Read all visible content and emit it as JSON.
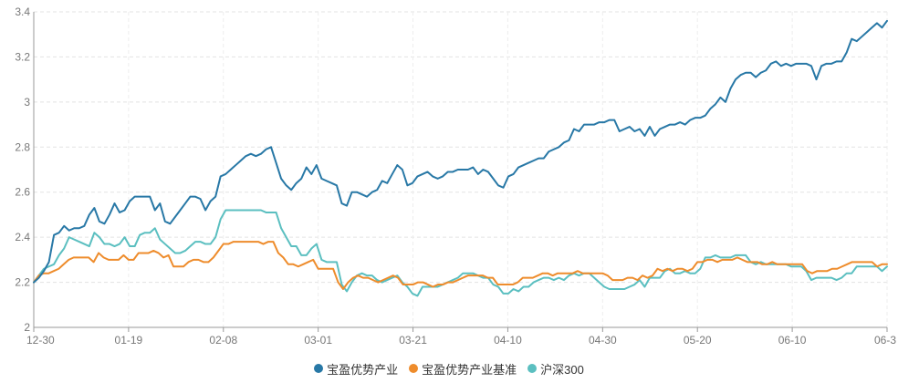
{
  "chart_data": {
    "type": "line",
    "title": "",
    "xlabel": "",
    "ylabel": "",
    "x_ticks": [
      "12-30",
      "01-19",
      "02-08",
      "03-01",
      "03-21",
      "04-10",
      "04-30",
      "05-20",
      "06-10",
      "06-3"
    ],
    "y_ticks": [
      "2",
      "2.2",
      "2.4",
      "2.6",
      "2.8",
      "3",
      "3.2",
      "3.4"
    ],
    "ylim": [
      2.0,
      3.4
    ],
    "grid": "horizontal dashed",
    "legend_position": "bottom",
    "series": [
      {
        "name": "宝盈优势产业",
        "color": "#2878a6",
        "values": [
          2.2,
          2.22,
          2.25,
          2.29,
          2.41,
          2.42,
          2.45,
          2.43,
          2.44,
          2.44,
          2.45,
          2.5,
          2.53,
          2.47,
          2.46,
          2.5,
          2.55,
          2.51,
          2.52,
          2.56,
          2.58,
          2.58,
          2.58,
          2.58,
          2.52,
          2.55,
          2.47,
          2.46,
          2.49,
          2.52,
          2.55,
          2.58,
          2.58,
          2.57,
          2.52,
          2.56,
          2.58,
          2.67,
          2.68,
          2.7,
          2.72,
          2.74,
          2.76,
          2.77,
          2.76,
          2.77,
          2.79,
          2.8,
          2.73,
          2.66,
          2.63,
          2.61,
          2.64,
          2.66,
          2.71,
          2.68,
          2.72,
          2.66,
          2.65,
          2.64,
          2.63,
          2.55,
          2.54,
          2.6,
          2.6,
          2.59,
          2.58,
          2.6,
          2.61,
          2.65,
          2.64,
          2.68,
          2.72,
          2.7,
          2.63,
          2.64,
          2.67,
          2.68,
          2.69,
          2.67,
          2.66,
          2.67,
          2.69,
          2.69,
          2.7,
          2.7,
          2.7,
          2.71,
          2.68,
          2.7,
          2.69,
          2.66,
          2.63,
          2.62,
          2.67,
          2.68,
          2.71,
          2.72,
          2.73,
          2.74,
          2.75,
          2.75,
          2.78,
          2.79,
          2.8,
          2.82,
          2.83,
          2.88,
          2.87,
          2.9,
          2.9,
          2.9,
          2.91,
          2.91,
          2.92,
          2.92,
          2.87,
          2.88,
          2.89,
          2.87,
          2.88,
          2.85,
          2.89,
          2.85,
          2.88,
          2.89,
          2.9,
          2.9,
          2.91,
          2.9,
          2.92,
          2.93,
          2.93,
          2.94,
          2.97,
          2.99,
          3.02,
          3.0,
          3.06,
          3.1,
          3.12,
          3.13,
          3.13,
          3.11,
          3.13,
          3.14,
          3.17,
          3.18,
          3.16,
          3.17,
          3.16,
          3.17,
          3.17,
          3.17,
          3.16,
          3.1,
          3.16,
          3.17,
          3.17,
          3.18,
          3.18,
          3.22,
          3.28,
          3.27,
          3.29,
          3.31,
          3.33,
          3.35,
          3.33,
          3.36
        ]
      },
      {
        "name": "宝盈优势产业基准",
        "color": "#ee8c2c",
        "values": [
          2.2,
          2.23,
          2.24,
          2.24,
          2.25,
          2.26,
          2.28,
          2.3,
          2.31,
          2.31,
          2.31,
          2.31,
          2.29,
          2.33,
          2.31,
          2.3,
          2.3,
          2.3,
          2.32,
          2.3,
          2.3,
          2.33,
          2.33,
          2.33,
          2.34,
          2.33,
          2.31,
          2.32,
          2.27,
          2.27,
          2.27,
          2.29,
          2.3,
          2.3,
          2.29,
          2.29,
          2.31,
          2.34,
          2.37,
          2.37,
          2.38,
          2.38,
          2.38,
          2.38,
          2.38,
          2.38,
          2.37,
          2.38,
          2.38,
          2.33,
          2.31,
          2.28,
          2.28,
          2.27,
          2.28,
          2.29,
          2.3,
          2.26,
          2.26,
          2.26,
          2.26,
          2.2,
          2.17,
          2.2,
          2.22,
          2.23,
          2.22,
          2.22,
          2.21,
          2.2,
          2.21,
          2.22,
          2.23,
          2.22,
          2.19,
          2.19,
          2.19,
          2.2,
          2.2,
          2.19,
          2.18,
          2.19,
          2.19,
          2.2,
          2.2,
          2.21,
          2.22,
          2.23,
          2.23,
          2.23,
          2.23,
          2.22,
          2.22,
          2.19,
          2.19,
          2.19,
          2.19,
          2.2,
          2.22,
          2.22,
          2.22,
          2.23,
          2.24,
          2.24,
          2.23,
          2.24,
          2.24,
          2.24,
          2.24,
          2.25,
          2.24,
          2.24,
          2.24,
          2.24,
          2.24,
          2.23,
          2.21,
          2.21,
          2.21,
          2.22,
          2.22,
          2.21,
          2.23,
          2.22,
          2.23,
          2.26,
          2.25,
          2.26,
          2.25,
          2.26,
          2.26,
          2.25,
          2.26,
          2.29,
          2.29,
          2.3,
          2.3,
          2.29,
          2.3,
          2.3,
          2.3,
          2.31,
          2.3,
          2.29,
          2.29,
          2.29,
          2.28,
          2.28,
          2.29,
          2.28,
          2.28,
          2.28,
          2.28,
          2.28,
          2.28,
          2.25,
          2.24,
          2.25,
          2.25,
          2.25,
          2.26,
          2.26,
          2.27,
          2.28,
          2.29,
          2.29,
          2.29,
          2.29,
          2.29,
          2.27,
          2.28,
          2.28
        ]
      },
      {
        "name": "沪深300",
        "color": "#5bbfc0",
        "values": [
          2.2,
          2.23,
          2.26,
          2.27,
          2.28,
          2.32,
          2.35,
          2.4,
          2.39,
          2.38,
          2.37,
          2.36,
          2.42,
          2.4,
          2.37,
          2.37,
          2.36,
          2.37,
          2.4,
          2.36,
          2.36,
          2.41,
          2.42,
          2.42,
          2.44,
          2.39,
          2.37,
          2.35,
          2.33,
          2.33,
          2.34,
          2.36,
          2.38,
          2.38,
          2.37,
          2.37,
          2.4,
          2.48,
          2.52,
          2.52,
          2.52,
          2.52,
          2.52,
          2.52,
          2.52,
          2.52,
          2.51,
          2.51,
          2.51,
          2.44,
          2.4,
          2.36,
          2.36,
          2.32,
          2.32,
          2.35,
          2.37,
          2.3,
          2.29,
          2.29,
          2.29,
          2.19,
          2.16,
          2.2,
          2.23,
          2.24,
          2.23,
          2.23,
          2.21,
          2.2,
          2.21,
          2.22,
          2.23,
          2.2,
          2.18,
          2.15,
          2.14,
          2.18,
          2.18,
          2.18,
          2.18,
          2.19,
          2.2,
          2.21,
          2.22,
          2.24,
          2.24,
          2.24,
          2.23,
          2.22,
          2.22,
          2.19,
          2.18,
          2.15,
          2.15,
          2.17,
          2.16,
          2.18,
          2.18,
          2.2,
          2.21,
          2.22,
          2.22,
          2.21,
          2.22,
          2.21,
          2.23,
          2.24,
          2.23,
          2.24,
          2.24,
          2.22,
          2.2,
          2.18,
          2.17,
          2.17,
          2.17,
          2.17,
          2.18,
          2.19,
          2.21,
          2.18,
          2.22,
          2.22,
          2.22,
          2.25,
          2.26,
          2.24,
          2.24,
          2.25,
          2.24,
          2.24,
          2.26,
          2.31,
          2.31,
          2.32,
          2.31,
          2.31,
          2.31,
          2.32,
          2.32,
          2.32,
          2.29,
          2.28,
          2.29,
          2.28,
          2.28,
          2.28,
          2.28,
          2.28,
          2.27,
          2.27,
          2.27,
          2.25,
          2.21,
          2.22,
          2.22,
          2.22,
          2.22,
          2.21,
          2.22,
          2.24,
          2.24,
          2.27,
          2.27,
          2.27,
          2.27,
          2.27,
          2.25,
          2.27
        ]
      }
    ]
  }
}
